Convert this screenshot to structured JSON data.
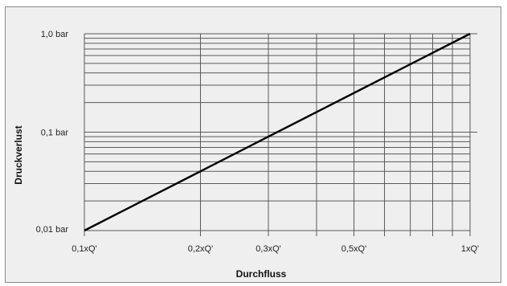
{
  "chart_data": {
    "type": "line",
    "title": "",
    "xlabel": "Durchfluss",
    "ylabel": "Druckverlust",
    "x_scale": "log",
    "y_scale": "log",
    "xlim": [
      0.1,
      1
    ],
    "ylim": [
      0.01,
      1
    ],
    "grid": true,
    "x_ticks": [
      {
        "value": 0.1,
        "label": "0,1xQ'"
      },
      {
        "value": 0.2,
        "label": "0,2xQ'"
      },
      {
        "value": 0.3,
        "label": "0,3xQ'"
      },
      {
        "value": 0.5,
        "label": "0,5xQ'"
      },
      {
        "value": 1,
        "label": "1xQ'"
      }
    ],
    "y_ticks": [
      {
        "value": 0.01,
        "label": "0,01 bar"
      },
      {
        "value": 0.1,
        "label": "0,1 bar"
      },
      {
        "value": 1,
        "label": "1,0 bar"
      }
    ],
    "series": [
      {
        "x": [
          0.1,
          0.2,
          0.3,
          0.5,
          1
        ],
        "y": [
          0.01,
          0.04,
          0.09,
          0.25,
          1
        ],
        "color": "#000000"
      }
    ]
  }
}
